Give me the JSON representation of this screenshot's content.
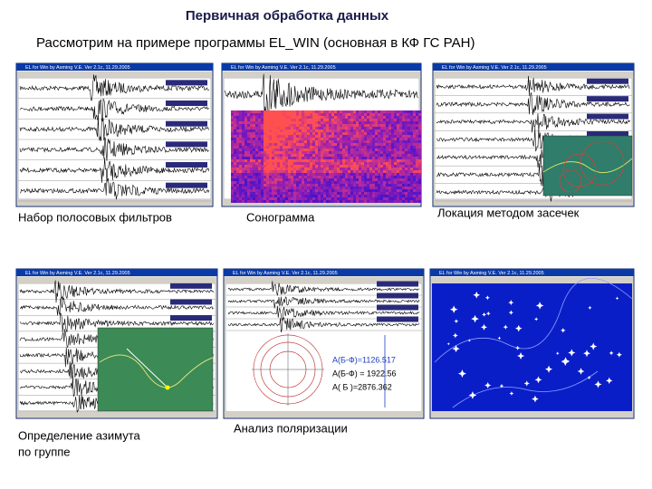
{
  "header": {
    "title": "Первичная обработка данных",
    "subtitle": "Рассмотрим на примере программы EL_WIN (основная в КФ ГС РАН)"
  },
  "panels": [
    {
      "window_title": "EL for Win by Asming V.E. Ver 2.1c, 11.29.2005",
      "caption": [
        "Набор полосовых фильтров"
      ]
    },
    {
      "window_title": "EL for Win by Asming V.E. Ver 2.1c, 11.29.2005",
      "caption": [
        "Сонограмма"
      ]
    },
    {
      "window_title": "EL for Win by Asming V.E. Ver 2.1c, 11.29.2005",
      "caption": [
        "Локация методом засечек"
      ]
    },
    {
      "window_title": "EL for Win by Asming V.E. Ver 2.1c, 11.29.2005",
      "caption": [
        "Определение азимута",
        "по группе"
      ]
    },
    {
      "window_title": "EL for Win by Asming V.E. Ver 2.1c, 11.29.2005",
      "caption": [
        "Анализ поляризации"
      ],
      "readouts": [
        "A(Б-Ф)=1126.517",
        "A(Б-Ф) = 1922.56",
        "A( Б )=2876.362"
      ]
    },
    {
      "window_title": "EL for Win by Asming V.E. Ver 2.1c, 11.29.2005",
      "caption": []
    }
  ]
}
